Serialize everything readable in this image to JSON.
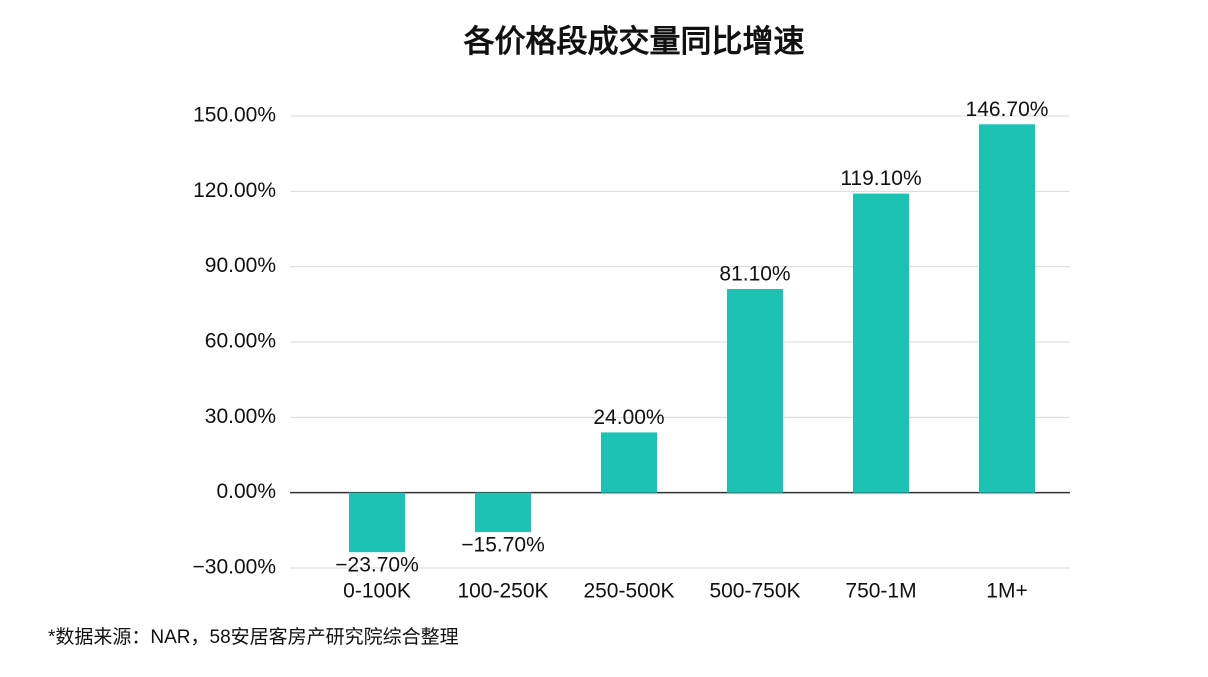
{
  "chart_data": {
    "type": "bar",
    "title": "各价格段成交量同比增速",
    "categories": [
      "0-100K",
      "100-250K",
      "250-500K",
      "500-750K",
      "750-1M",
      "1M+"
    ],
    "values": [
      -23.7,
      -15.7,
      24,
      81.1,
      119.1,
      146.7
    ],
    "value_labels": [
      "−23.70%",
      "−15.70%",
      "24.00%",
      "81.10%",
      "119.10%",
      "146.70%"
    ],
    "color": "#1cc3b4",
    "ylim": [
      -30,
      150
    ],
    "yticks": [
      {
        "value": -30,
        "label": "−30.00%"
      },
      {
        "value": 0,
        "label": "0.00%"
      },
      {
        "value": 30,
        "label": "30.00%"
      },
      {
        "value": 60,
        "label": "60.00%"
      },
      {
        "value": 90,
        "label": "90.00%"
      },
      {
        "value": 120,
        "label": "120.00%"
      },
      {
        "value": 150,
        "label": "150.00%"
      }
    ],
    "grid": true,
    "source": "*数据来源：NAR，58安居客房产研究院综合整理"
  }
}
